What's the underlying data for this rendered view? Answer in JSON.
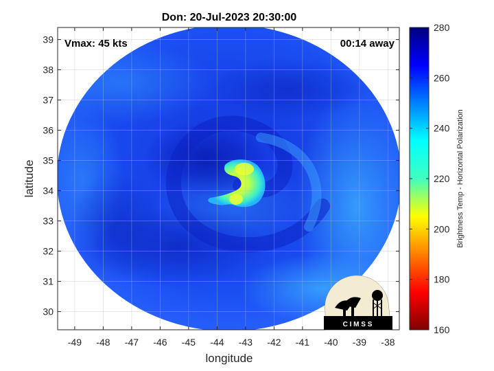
{
  "figure": {
    "title": "Don: 20-Jul-2023 20:30:00",
    "vmax_label": "Vmax: 45 kts",
    "time_offset_label": "00:14 away",
    "xlabel": "longitude",
    "ylabel": "latitude",
    "colorbar_label": "Brightness Temp - Horizontal Polarization",
    "logo_text": "C I M S S"
  },
  "map": {
    "lon_range": [
      -49.6,
      -37.6
    ],
    "lat_range": [
      29.4,
      39.4
    ],
    "lon_ticks": [
      -49,
      -48,
      -47,
      -46,
      -45,
      -44,
      -43,
      -42,
      -41,
      -40,
      -39,
      -38
    ],
    "lat_ticks": [
      30,
      31,
      32,
      33,
      34,
      35,
      36,
      37,
      38,
      39
    ],
    "grid": true,
    "storm_center": {
      "lon": -43.3,
      "lat": 34.3
    },
    "warm_core_peak_temp": 195
  },
  "colorbar": {
    "min": 160,
    "max": 280,
    "ticks": [
      160,
      180,
      200,
      220,
      240,
      260,
      280
    ],
    "colormap": "jet",
    "colors": [
      "#7f0000",
      "#ff0000",
      "#ffff00",
      "#00ffff",
      "#0000ff",
      "#00007f"
    ]
  }
}
